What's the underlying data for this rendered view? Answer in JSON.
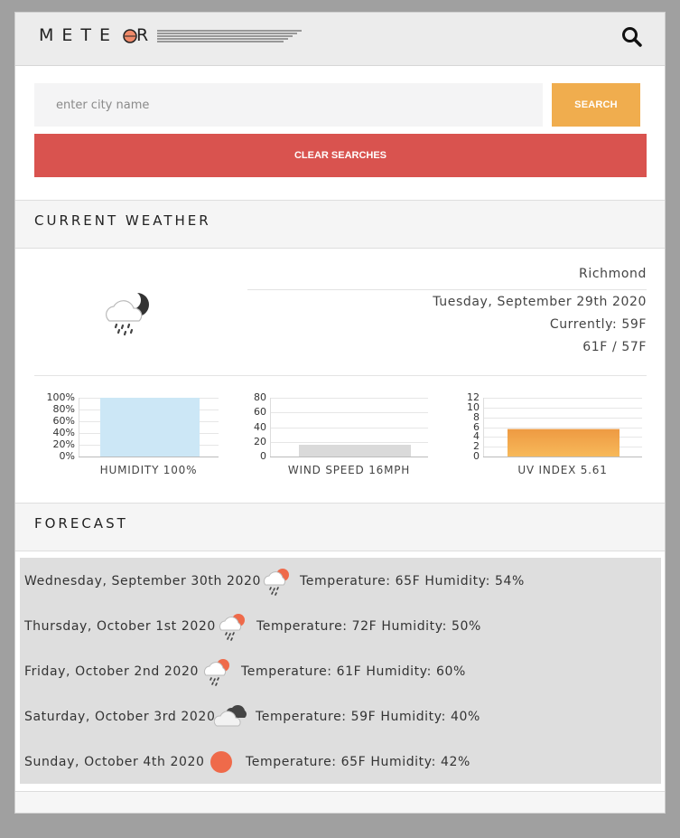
{
  "header": {
    "logo_text": "METE",
    "logo_tail": "R"
  },
  "search": {
    "placeholder": "enter city name",
    "value": "",
    "search_label": "SEARCH",
    "clear_label": "CLEAR SEARCHES"
  },
  "current": {
    "section_title": "CURRENT WEATHER",
    "city": "Richmond",
    "date": "Tuesday, September 29th 2020",
    "currently": "Currently: 59F",
    "range": "61F / 57F",
    "icon": "rain-night-icon"
  },
  "chart_data": [
    {
      "type": "bar",
      "categories": [
        "Humidity"
      ],
      "values": [
        100
      ],
      "ylim": [
        0,
        100
      ],
      "yticks": [
        "100%",
        "80%",
        "60%",
        "40%",
        "20%",
        "0%"
      ],
      "xlabel": "HUMIDITY 100%",
      "color": "#cce7f6"
    },
    {
      "type": "bar",
      "categories": [
        "Wind Speed"
      ],
      "values": [
        16
      ],
      "ylim": [
        0,
        80
      ],
      "yticks": [
        "80",
        "60",
        "40",
        "20",
        "0"
      ],
      "xlabel": "WIND SPEED 16MPH",
      "color": "#dadada"
    },
    {
      "type": "bar",
      "categories": [
        "UV Index"
      ],
      "values": [
        5.61
      ],
      "ylim": [
        0,
        12
      ],
      "yticks": [
        "12",
        "10",
        "8",
        "6",
        "4",
        "2",
        "0"
      ],
      "xlabel": "UV INDEX 5.61",
      "color": "#f0a94a"
    }
  ],
  "forecast": {
    "section_title": "FORECAST",
    "days": [
      {
        "date": "Wednesday, September 30th 2020",
        "details": "Temperature: 65F Humidity: 54%",
        "icon": "rain-sun-icon"
      },
      {
        "date": "Thursday, October 1st 2020",
        "details": "Temperature: 72F Humidity: 50%",
        "icon": "rain-sun-icon"
      },
      {
        "date": "Friday, October 2nd 2020",
        "details": "Temperature: 61F Humidity: 60%",
        "icon": "rain-sun-icon"
      },
      {
        "date": "Saturday, October 3rd 2020",
        "details": "Temperature: 59F Humidity: 40%",
        "icon": "cloudy-icon"
      },
      {
        "date": "Sunday, October 4th 2020",
        "details": "Temperature: 65F Humidity: 42%",
        "icon": "sun-icon"
      }
    ]
  },
  "colors": {
    "accent": "#f0ad4e",
    "danger": "#d9534f",
    "sun": "#ef6a4a"
  }
}
